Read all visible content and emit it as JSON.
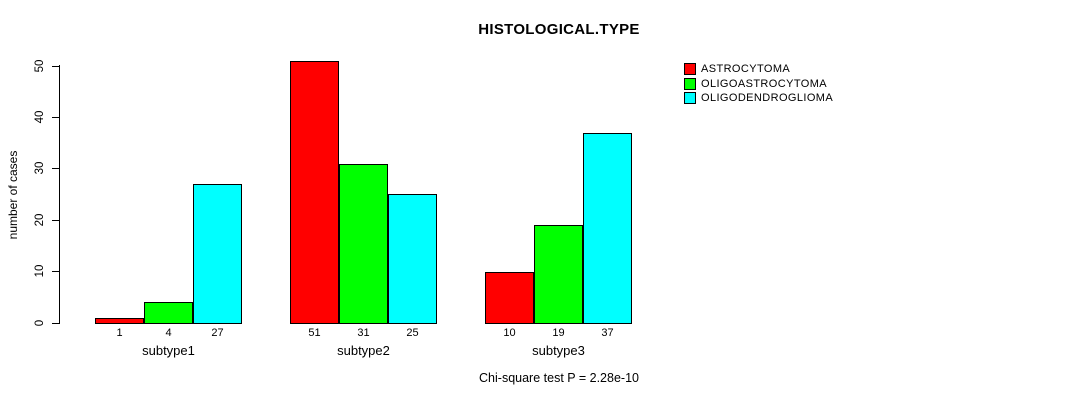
{
  "title": "HISTOLOGICAL.TYPE",
  "footer": {
    "caption": "Chi-square test P = 2.28e-10"
  },
  "chart_data": {
    "type": "bar",
    "title": "HISTOLOGICAL.TYPE",
    "categories": [
      "subtype1",
      "subtype2",
      "subtype3"
    ],
    "series": [
      {
        "name": "ASTROCYTOMA",
        "color": "#ff0000",
        "values": [
          1,
          51,
          10
        ]
      },
      {
        "name": "OLIGOASTROCYTOMA",
        "color": "#00ff00",
        "values": [
          4,
          31,
          19
        ]
      },
      {
        "name": "OLIGODENDROGLIOMA",
        "color": "#00ffff",
        "values": [
          27,
          25,
          37
        ]
      }
    ],
    "xlabel": "",
    "ylabel": "number of cases",
    "yticks": [
      0,
      10,
      20,
      30,
      40,
      50
    ],
    "ylim": [
      0,
      51
    ],
    "bar_value_labels_shown": true,
    "grid": false,
    "legend_position": "right",
    "annotation": "Chi-square test P = 2.28e-10"
  }
}
